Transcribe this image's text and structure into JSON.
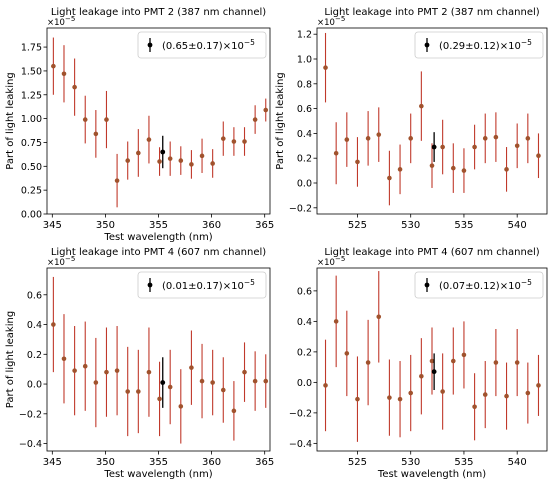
{
  "chart_data": [
    {
      "type": "scatter",
      "title": "Light leakage into PMT 2 (387 nm channel)",
      "xlabel": "Test wavelength (nm)",
      "ylabel": "Part of light leaking",
      "y_multiplier": "×10",
      "y_multiplier_exp": "−5",
      "xlim": [
        344.5,
        365.5
      ],
      "ylim": [
        0,
        1.95
      ],
      "xticks": [
        345,
        350,
        355,
        360,
        365
      ],
      "xtick_labels": [
        "345",
        "350",
        "355",
        "360",
        "365"
      ],
      "yticks": [
        0,
        0.25,
        0.5,
        0.75,
        1.0,
        1.25,
        1.5,
        1.75
      ],
      "ytick_labels": [
        "0.00",
        "0.25",
        "0.50",
        "0.75",
        "1.00",
        "1.25",
        "1.50",
        "1.75"
      ],
      "legend_text": "(0.65±0.17)×10",
      "legend_exp": "−5",
      "legend_position": "top-right",
      "highlight": {
        "x": 355.4,
        "y": 0.65,
        "err": 0.17
      },
      "series": [
        {
          "x": [
            345.1,
            346.1,
            347.1,
            348.1,
            349.1,
            350.1,
            351.1,
            352.1,
            353.1,
            354.1,
            355.1,
            356.1,
            357.1,
            358.1,
            359.1,
            360.1,
            361.1,
            362.1,
            363.1,
            364.1,
            365.1
          ],
          "y": [
            1.55,
            1.47,
            1.33,
            0.99,
            0.84,
            0.99,
            0.35,
            0.56,
            0.64,
            0.78,
            0.55,
            0.58,
            0.56,
            0.52,
            0.61,
            0.53,
            0.79,
            0.76,
            0.76,
            0.99,
            1.09
          ],
          "err": [
            0.3,
            0.3,
            0.3,
            0.25,
            0.25,
            0.3,
            0.28,
            0.2,
            0.25,
            0.25,
            0.15,
            0.18,
            0.15,
            0.15,
            0.18,
            0.15,
            0.18,
            0.15,
            0.15,
            0.15,
            0.12
          ]
        }
      ]
    },
    {
      "type": "scatter",
      "title": "Light leakage into PMT 2 (387 nm channel)",
      "xlabel": "",
      "ylabel": "Part of light leaking",
      "y_multiplier": "×10",
      "y_multiplier_exp": "−5",
      "xlim": [
        521.2,
        542.8
      ],
      "ylim": [
        -0.25,
        1.25
      ],
      "xticks": [
        525,
        530,
        535,
        540
      ],
      "xtick_labels": [
        "525",
        "530",
        "535",
        "540"
      ],
      "yticks": [
        -0.2,
        0.0,
        0.2,
        0.4,
        0.6,
        0.8,
        1.0,
        1.2
      ],
      "ytick_labels": [
        "−0.2",
        "0.0",
        "0.2",
        "0.4",
        "0.6",
        "0.8",
        "1.0",
        "1.2"
      ],
      "legend_text": "(0.29±0.12)×10",
      "legend_exp": "−5",
      "legend_position": "top-right",
      "highlight": {
        "x": 532.2,
        "y": 0.29,
        "err": 0.12
      },
      "series": [
        {
          "x": [
            522,
            523,
            524,
            525,
            526,
            527,
            528,
            529,
            530,
            531,
            532,
            533,
            534,
            535,
            536,
            537,
            538,
            539,
            540,
            541,
            542
          ],
          "y": [
            0.93,
            0.24,
            0.35,
            0.17,
            0.36,
            0.39,
            0.04,
            0.11,
            0.36,
            0.62,
            0.14,
            0.29,
            0.12,
            0.1,
            0.29,
            0.36,
            0.37,
            0.11,
            0.3,
            0.36,
            0.22
          ],
          "err": [
            0.28,
            0.25,
            0.22,
            0.2,
            0.22,
            0.22,
            0.22,
            0.2,
            0.2,
            0.28,
            0.18,
            0.22,
            0.2,
            0.18,
            0.18,
            0.2,
            0.2,
            0.18,
            0.18,
            0.2,
            0.18
          ]
        }
      ]
    },
    {
      "type": "scatter",
      "title": "Light leakage into PMT 4 (607 nm channel)",
      "xlabel": "Test wavelength (nm)",
      "ylabel": "Part of light leaking",
      "y_multiplier": "×10",
      "y_multiplier_exp": "−5",
      "xlim": [
        344.5,
        365.5
      ],
      "ylim": [
        -0.45,
        0.78
      ],
      "xticks": [
        345,
        350,
        355,
        360,
        365
      ],
      "xtick_labels": [
        "345",
        "350",
        "355",
        "360",
        "365"
      ],
      "yticks": [
        -0.4,
        -0.2,
        0.0,
        0.2,
        0.4,
        0.6
      ],
      "ytick_labels": [
        "−0.4",
        "−0.2",
        "0.0",
        "0.2",
        "0.4",
        "0.6"
      ],
      "legend_text": "(0.01±0.17)×10",
      "legend_exp": "−5",
      "legend_position": "top-right",
      "highlight": {
        "x": 355.4,
        "y": 0.01,
        "err": 0.17
      },
      "series": [
        {
          "x": [
            345.1,
            346.1,
            347.1,
            348.1,
            349.1,
            350.1,
            351.1,
            352.1,
            353.1,
            354.1,
            355.1,
            356.1,
            357.1,
            358.1,
            359.1,
            360.1,
            361.1,
            362.1,
            363.1,
            364.1,
            365.1
          ],
          "y": [
            0.4,
            0.17,
            0.09,
            0.12,
            0.01,
            0.08,
            0.09,
            -0.05,
            -0.05,
            0.08,
            -0.1,
            -0.02,
            -0.15,
            0.11,
            0.02,
            0.01,
            -0.04,
            -0.18,
            0.08,
            0.02,
            0.02
          ],
          "err": [
            0.32,
            0.3,
            0.3,
            0.3,
            0.3,
            0.3,
            0.3,
            0.3,
            0.28,
            0.3,
            0.25,
            0.25,
            0.25,
            0.25,
            0.25,
            0.22,
            0.22,
            0.2,
            0.2,
            0.2,
            0.18
          ]
        }
      ]
    },
    {
      "type": "scatter",
      "title": "Light leakage into PMT 4 (607 nm channel)",
      "xlabel": "Test wavelength (nm)",
      "ylabel": "",
      "y_multiplier": "×10",
      "y_multiplier_exp": "−5",
      "xlim": [
        521.2,
        542.8
      ],
      "ylim": [
        -0.45,
        0.75
      ],
      "xticks": [
        525,
        530,
        535,
        540
      ],
      "xtick_labels": [
        "525",
        "530",
        "535",
        "540"
      ],
      "yticks": [
        -0.4,
        -0.2,
        0.0,
        0.2,
        0.4,
        0.6
      ],
      "ytick_labels": [
        "−0.4",
        "−0.2",
        "0.0",
        "0.2",
        "0.4",
        "0.6"
      ],
      "legend_text": "(0.07±0.12)×10",
      "legend_exp": "−5",
      "legend_position": "top-right",
      "highlight": {
        "x": 532.2,
        "y": 0.07,
        "err": 0.12
      },
      "series": [
        {
          "x": [
            522,
            523,
            524,
            525,
            526,
            527,
            528,
            529,
            530,
            531,
            532,
            533,
            534,
            535,
            536,
            537,
            538,
            539,
            540,
            541,
            542
          ],
          "y": [
            -0.02,
            0.4,
            0.19,
            -0.11,
            0.13,
            0.43,
            -0.1,
            -0.11,
            -0.07,
            0.04,
            0.14,
            -0.06,
            0.14,
            0.18,
            -0.16,
            -0.08,
            0.13,
            -0.09,
            0.13,
            -0.07,
            -0.02
          ],
          "err": [
            0.3,
            0.3,
            0.28,
            0.28,
            0.28,
            0.3,
            0.25,
            0.25,
            0.25,
            0.25,
            0.22,
            0.25,
            0.22,
            0.22,
            0.22,
            0.22,
            0.22,
            0.22,
            0.22,
            0.2,
            0.2
          ]
        }
      ]
    }
  ],
  "colors": {
    "error_bar": "#c0392b",
    "marker": "#a0522d",
    "highlight": "#000000"
  }
}
